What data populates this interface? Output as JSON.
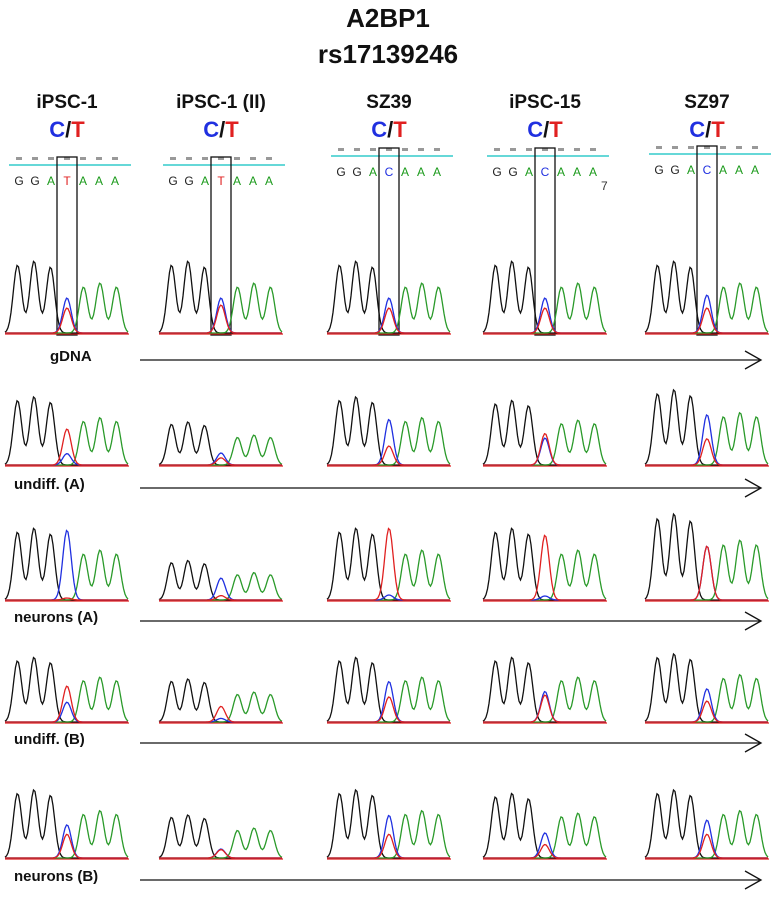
{
  "title": "A2BP1",
  "subtitle": "rs17139246",
  "allele": {
    "c": "C",
    "sep": "/",
    "t": "T"
  },
  "columns": [
    {
      "label": "iPSC-1",
      "sequence": [
        "G",
        "G",
        "A",
        "T",
        "A",
        "A",
        "A"
      ]
    },
    {
      "label": "iPSC-1 (II)",
      "sequence": [
        "G",
        "G",
        "A",
        "T",
        "A",
        "A",
        "A"
      ]
    },
    {
      "label": "SZ39",
      "sequence": [
        "G",
        "G",
        "A",
        "C",
        "A",
        "A",
        "A"
      ]
    },
    {
      "label": "iPSC-15",
      "sequence": [
        "G",
        "G",
        "A",
        "C",
        "A",
        "A",
        "A"
      ],
      "footnote": "7"
    },
    {
      "label": "SZ97",
      "sequence": [
        "G",
        "G",
        "A",
        "C",
        "A",
        "A",
        "A"
      ]
    }
  ],
  "rows": [
    "gDNA",
    "undiff. (A)",
    "neurons (A)",
    "undiff. (B)",
    "neurons (B)"
  ]
}
